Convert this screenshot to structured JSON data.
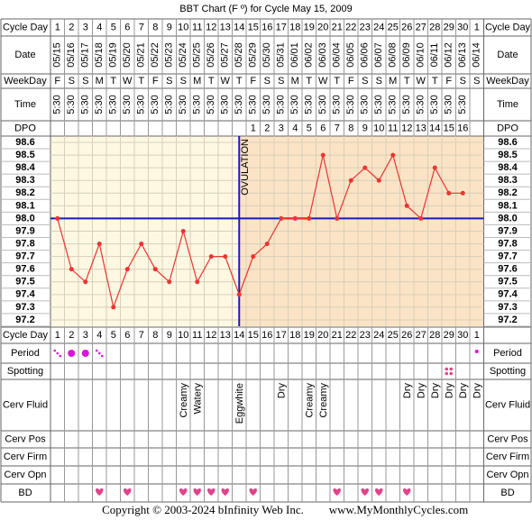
{
  "title": "BBT Chart (F º) for Cycle May 15, 2009",
  "row_labels": {
    "cycle_day": "Cycle Day",
    "date": "Date",
    "weekday": "WeekDay",
    "time": "Time",
    "dpo": "DPO",
    "period": "Period",
    "spotting": "Spotting",
    "cerv_fluid": "Cerv Fluid",
    "cerv_pos": "Cerv Pos",
    "cerv_firm": "Cerv Firm",
    "cerv_opn": "Cerv Opn",
    "bd": "BD"
  },
  "table": {
    "dates": [
      "05/15",
      "05/16",
      "05/17",
      "05/18",
      "05/19",
      "05/20",
      "05/21",
      "05/22",
      "05/23",
      "05/24",
      "05/25",
      "05/26",
      "05/27",
      "05/28",
      "05/29",
      "05/30",
      "05/31",
      "06/01",
      "06/02",
      "06/03",
      "06/04",
      "06/05",
      "06/06",
      "06/07",
      "06/08",
      "06/09",
      "06/10",
      "06/11",
      "06/12",
      "06/13",
      "06/14"
    ],
    "weekdays": [
      "F",
      "S",
      "S",
      "M",
      "T",
      "W",
      "T",
      "F",
      "S",
      "S",
      "M",
      "T",
      "W",
      "T",
      "F",
      "S",
      "S",
      "M",
      "T",
      "W",
      "T",
      "F",
      "S",
      "S",
      "M",
      "T",
      "W",
      "T",
      "F",
      "S",
      "S"
    ],
    "times": [
      "5:30",
      "5:30",
      "5:30",
      "5:30",
      "5:30",
      "5:30",
      "5:30",
      "5:30",
      "5:30",
      "5:30",
      "5:30",
      "5:30",
      "5:30",
      "5:30",
      "5:30",
      "5:30",
      "5:30",
      "5:30",
      "5:30",
      "5:30",
      "5:30",
      "5:30",
      "5:30",
      "5:30",
      "5:30",
      "5:30",
      "5:30",
      "5:30",
      "5:30",
      "5:30",
      null
    ],
    "dpo": [
      null,
      null,
      null,
      null,
      null,
      null,
      null,
      null,
      null,
      null,
      null,
      null,
      null,
      null,
      1,
      2,
      3,
      4,
      5,
      6,
      7,
      8,
      9,
      10,
      11,
      12,
      13,
      14,
      15,
      16,
      null
    ],
    "cerv_fluid": [
      null,
      null,
      null,
      null,
      null,
      null,
      null,
      null,
      null,
      "Creamy",
      "Watery",
      null,
      null,
      "Eggwhite",
      null,
      null,
      "Dry",
      null,
      "Creamy",
      "Creamy",
      null,
      null,
      null,
      null,
      null,
      "Dry",
      "Dry",
      "Dry",
      "Dry",
      "Dry",
      "Dry"
    ],
    "bd": [
      false,
      false,
      false,
      true,
      false,
      true,
      false,
      false,
      false,
      true,
      true,
      true,
      true,
      false,
      true,
      false,
      false,
      false,
      false,
      false,
      true,
      false,
      true,
      true,
      false,
      true,
      false,
      false,
      false,
      false,
      false
    ]
  },
  "chart_data": {
    "type": "line",
    "categories": [
      1,
      2,
      3,
      4,
      5,
      6,
      7,
      8,
      9,
      10,
      11,
      12,
      13,
      14,
      15,
      16,
      17,
      18,
      19,
      20,
      21,
      22,
      23,
      24,
      25,
      26,
      27,
      28,
      29,
      30,
      1
    ],
    "values": [
      98,
      97.6,
      97.5,
      97.8,
      97.3,
      97.6,
      97.8,
      97.6,
      97.5,
      97.9,
      97.5,
      97.7,
      97.7,
      97.4,
      97.7,
      97.8,
      98,
      98,
      98,
      98.5,
      98,
      98.3,
      98.4,
      98.3,
      98.5,
      98.1,
      98,
      98.4,
      98.2,
      98.2,
      null
    ],
    "color": "#ee3333",
    "coverline": 98,
    "coverline_color": "#1a1ab8",
    "ovulation_label": "OVULATION",
    "ylim": [
      97.15,
      98.65
    ],
    "yticks": [
      97.2,
      97.3,
      97.4,
      97.5,
      97.6,
      97.7,
      97.8,
      97.9,
      {
        "value": 98,
        "label": "98.0"
      },
      98.1,
      98.2,
      98.3,
      98.4,
      98.5,
      98.6
    ],
    "grid": true
  },
  "footer": {
    "copyright": "Copyright © 2003-2024 bInfinity Web Inc.",
    "site": "www.MyMonthlyCycles.com"
  }
}
